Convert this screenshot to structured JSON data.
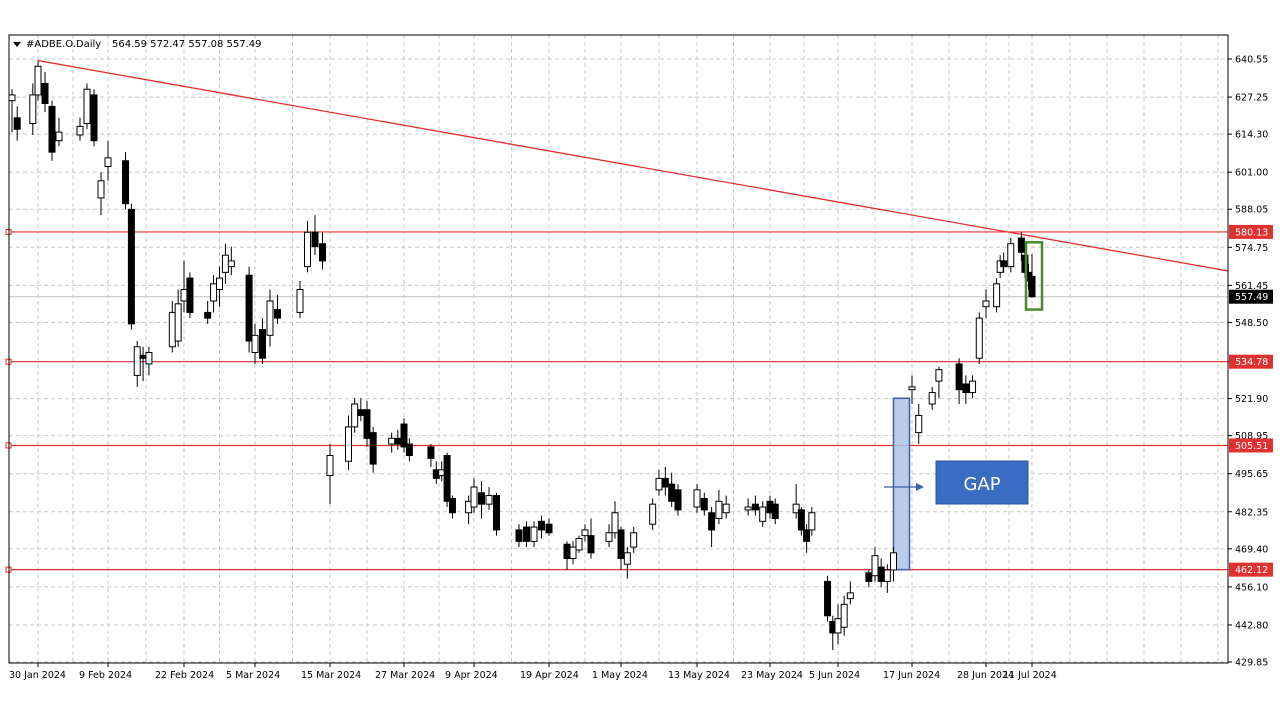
{
  "header": {
    "symbol": "#ADBE.O.Daily",
    "ohlc": "564.59 572.47 557.08 557.49"
  },
  "callout": {
    "label": "GAP"
  },
  "colors": {
    "line_red": "#e03030",
    "grid": "#c8c8c8",
    "gap_fill": "#aec3e8",
    "gap_stroke": "#3d5fa8",
    "callout_fill": "#3b6cc4",
    "highlight_green": "#4a8a2a",
    "candle": "#000000"
  },
  "chart_data": {
    "type": "candlestick",
    "title": "#ADBE.O.Daily",
    "ylim": [
      429.85,
      645.0
    ],
    "y_ticks": [
      "640.55",
      "627.25",
      "614.30",
      "601.00",
      "588.05",
      "574.75",
      "561.45",
      "548.50",
      "534.78",
      "521.90",
      "508.95",
      "495.65",
      "482.35",
      "469.40",
      "456.10",
      "442.80",
      "429.85"
    ],
    "x_tick_labels": [
      "30 Jan 2024",
      "9 Feb 2024",
      "22 Feb 2024",
      "5 Mar 2024",
      "15 Mar 2024",
      "27 Mar 2024",
      "9 Apr 2024",
      "19 Apr 2024",
      "1 May 2024",
      "13 May 2024",
      "23 May 2024",
      "5 Jun 2024",
      "17 Jun 2024",
      "28 Jun 2024",
      "11 Jul 2024"
    ],
    "horizontal_levels": [
      {
        "value": 580.13,
        "label": "580.13"
      },
      {
        "value": 534.78,
        "label": "534.78"
      },
      {
        "value": 505.51,
        "label": "505.51"
      },
      {
        "value": 462.12,
        "label": "462.12"
      }
    ],
    "current_price": {
      "value": 557.49,
      "label": "557.49"
    },
    "trendline": {
      "from": {
        "date": "30 Jan 2024",
        "value": 640.0
      },
      "to": {
        "date": "22 Jul 2024",
        "value": 566.5
      }
    },
    "gap_zone": {
      "low": 462.12,
      "high": 522.0,
      "date": "14 Jun 2024"
    },
    "highlight": {
      "low": 553.0,
      "high": 576.5,
      "date": "11 Jul 2024"
    },
    "candles": [
      {
        "date": "25 Jan 2024",
        "o": 626,
        "h": 630,
        "l": 615,
        "c": 628
      },
      {
        "date": "26 Jan 2024",
        "o": 620,
        "h": 624,
        "l": 612,
        "c": 616
      },
      {
        "date": "29 Jan 2024",
        "o": 618,
        "h": 632,
        "l": 614,
        "c": 628
      },
      {
        "date": "30 Jan 2024",
        "o": 628,
        "h": 640,
        "l": 626,
        "c": 638
      },
      {
        "date": "31 Jan 2024",
        "o": 632,
        "h": 636,
        "l": 622,
        "c": 625
      },
      {
        "date": "1 Feb 2024",
        "o": 624,
        "h": 626,
        "l": 605,
        "c": 608
      },
      {
        "date": "2 Feb 2024",
        "o": 612,
        "h": 620,
        "l": 610,
        "c": 615
      },
      {
        "date": "5 Feb 2024",
        "o": 614,
        "h": 620,
        "l": 612,
        "c": 617
      },
      {
        "date": "6 Feb 2024",
        "o": 618,
        "h": 632,
        "l": 616,
        "c": 630
      },
      {
        "date": "7 Feb 2024",
        "o": 628,
        "h": 630,
        "l": 610,
        "c": 612
      },
      {
        "date": "8 Feb 2024",
        "o": 592,
        "h": 601,
        "l": 586,
        "c": 598
      },
      {
        "date": "9 Feb 2024",
        "o": 603,
        "h": 612,
        "l": 598,
        "c": 606
      },
      {
        "date": "12 Feb 2024",
        "o": 605,
        "h": 608,
        "l": 588,
        "c": 590
      },
      {
        "date": "13 Feb 2024",
        "o": 588,
        "h": 590,
        "l": 546,
        "c": 548
      },
      {
        "date": "14 Feb 2024",
        "o": 530,
        "h": 542,
        "l": 526,
        "c": 540
      },
      {
        "date": "15 Feb 2024",
        "o": 537,
        "h": 540,
        "l": 528,
        "c": 536
      },
      {
        "date": "16 Feb 2024",
        "o": 534,
        "h": 540,
        "l": 530,
        "c": 538
      },
      {
        "date": "20 Feb 2024",
        "o": 540,
        "h": 556,
        "l": 538,
        "c": 552
      },
      {
        "date": "21 Feb 2024",
        "o": 542,
        "h": 560,
        "l": 540,
        "c": 555
      },
      {
        "date": "22 Feb 2024",
        "o": 556,
        "h": 570,
        "l": 552,
        "c": 560
      },
      {
        "date": "23 Feb 2024",
        "o": 564,
        "h": 566,
        "l": 550,
        "c": 552
      },
      {
        "date": "26 Feb 2024",
        "o": 552,
        "h": 556,
        "l": 548,
        "c": 550
      },
      {
        "date": "27 Feb 2024",
        "o": 556,
        "h": 565,
        "l": 552,
        "c": 562
      },
      {
        "date": "28 Feb 2024",
        "o": 560,
        "h": 568,
        "l": 554,
        "c": 564
      },
      {
        "date": "29 Feb 2024",
        "o": 566,
        "h": 576,
        "l": 562,
        "c": 572
      },
      {
        "date": "1 Mar 2024",
        "o": 568,
        "h": 575,
        "l": 565,
        "c": 570
      },
      {
        "date": "4 Mar 2024",
        "o": 565,
        "h": 568,
        "l": 538,
        "c": 542
      },
      {
        "date": "5 Mar 2024",
        "o": 538,
        "h": 548,
        "l": 534,
        "c": 544
      },
      {
        "date": "6 Mar 2024",
        "o": 546,
        "h": 550,
        "l": 534,
        "c": 536
      },
      {
        "date": "7 Mar 2024",
        "o": 544,
        "h": 560,
        "l": 540,
        "c": 556
      },
      {
        "date": "8 Mar 2024",
        "o": 553,
        "h": 558,
        "l": 548,
        "c": 550
      },
      {
        "date": "11 Mar 2024",
        "o": 552,
        "h": 563,
        "l": 550,
        "c": 560
      },
      {
        "date": "12 Mar 2024",
        "o": 568,
        "h": 584,
        "l": 566,
        "c": 580
      },
      {
        "date": "13 Mar 2024",
        "o": 580,
        "h": 586,
        "l": 572,
        "c": 575
      },
      {
        "date": "14 Mar 2024",
        "o": 576,
        "h": 580,
        "l": 567,
        "c": 570
      },
      {
        "date": "15 Mar 2024",
        "o": 495,
        "h": 506,
        "l": 485,
        "c": 502
      },
      {
        "date": "18 Mar 2024",
        "o": 500,
        "h": 516,
        "l": 497,
        "c": 512
      },
      {
        "date": "19 Mar 2024",
        "o": 512,
        "h": 522,
        "l": 510,
        "c": 520
      },
      {
        "date": "20 Mar 2024",
        "o": 518,
        "h": 522,
        "l": 514,
        "c": 516
      },
      {
        "date": "21 Mar 2024",
        "o": 518,
        "h": 521,
        "l": 505,
        "c": 508
      },
      {
        "date": "22 Mar 2024",
        "o": 510,
        "h": 512,
        "l": 496,
        "c": 499
      },
      {
        "date": "25 Mar 2024",
        "o": 506,
        "h": 510,
        "l": 503,
        "c": 508
      },
      {
        "date": "26 Mar 2024",
        "o": 508,
        "h": 511,
        "l": 504,
        "c": 506
      },
      {
        "date": "27 Mar 2024",
        "o": 513,
        "h": 515,
        "l": 503,
        "c": 505
      },
      {
        "date": "28 Mar 2024",
        "o": 506,
        "h": 508,
        "l": 500,
        "c": 502
      },
      {
        "date": "1 Apr 2024",
        "o": 505,
        "h": 506,
        "l": 498,
        "c": 501
      },
      {
        "date": "2 Apr 2024",
        "o": 497,
        "h": 500,
        "l": 492,
        "c": 494
      },
      {
        "date": "3 Apr 2024",
        "o": 495,
        "h": 500,
        "l": 493,
        "c": 497
      },
      {
        "date": "4 Apr 2024",
        "o": 502,
        "h": 503,
        "l": 484,
        "c": 486
      },
      {
        "date": "5 Apr 2024",
        "o": 487,
        "h": 488,
        "l": 480,
        "c": 482
      },
      {
        "date": "8 Apr 2024",
        "o": 482,
        "h": 488,
        "l": 478,
        "c": 486
      },
      {
        "date": "9 Apr 2024",
        "o": 484,
        "h": 494,
        "l": 482,
        "c": 491
      },
      {
        "date": "10 Apr 2024",
        "o": 489,
        "h": 493,
        "l": 480,
        "c": 485
      },
      {
        "date": "11 Apr 2024",
        "o": 485,
        "h": 491,
        "l": 483,
        "c": 488
      },
      {
        "date": "12 Apr 2024",
        "o": 488,
        "h": 489,
        "l": 474,
        "c": 476
      },
      {
        "date": "15 Apr 2024",
        "o": 476,
        "h": 478,
        "l": 470,
        "c": 472
      },
      {
        "date": "16 Apr 2024",
        "o": 477,
        "h": 479,
        "l": 470,
        "c": 472
      },
      {
        "date": "17 Apr 2024",
        "o": 472,
        "h": 479,
        "l": 470,
        "c": 477
      },
      {
        "date": "18 Apr 2024",
        "o": 479,
        "h": 481,
        "l": 473,
        "c": 476
      },
      {
        "date": "19 Apr 2024",
        "o": 478,
        "h": 480,
        "l": 474,
        "c": 475
      },
      {
        "date": "22 Apr 2024",
        "o": 471,
        "h": 472,
        "l": 462,
        "c": 466
      },
      {
        "date": "23 Apr 2024",
        "o": 466,
        "h": 472,
        "l": 464,
        "c": 470
      },
      {
        "date": "24 Apr 2024",
        "o": 469,
        "h": 474,
        "l": 468,
        "c": 473
      },
      {
        "date": "25 Apr 2024",
        "o": 474,
        "h": 478,
        "l": 472,
        "c": 476
      },
      {
        "date": "26 Apr 2024",
        "o": 474,
        "h": 480,
        "l": 466,
        "c": 468
      },
      {
        "date": "29 Apr 2024",
        "o": 472,
        "h": 478,
        "l": 470,
        "c": 475
      },
      {
        "date": "30 Apr 2024",
        "o": 475,
        "h": 486,
        "l": 473,
        "c": 482
      },
      {
        "date": "1 May 2024",
        "o": 476,
        "h": 477,
        "l": 462,
        "c": 466
      },
      {
        "date": "2 May 2024",
        "o": 464,
        "h": 470,
        "l": 459,
        "c": 468
      },
      {
        "date": "3 May 2024",
        "o": 470,
        "h": 477,
        "l": 468,
        "c": 475
      },
      {
        "date": "6 May 2024",
        "o": 478,
        "h": 487,
        "l": 476,
        "c": 485
      },
      {
        "date": "7 May 2024",
        "o": 490,
        "h": 497,
        "l": 488,
        "c": 494
      },
      {
        "date": "8 May 2024",
        "o": 494,
        "h": 498,
        "l": 488,
        "c": 491
      },
      {
        "date": "9 May 2024",
        "o": 492,
        "h": 496,
        "l": 484,
        "c": 486
      },
      {
        "date": "10 May 2024",
        "o": 490,
        "h": 492,
        "l": 481,
        "c": 483
      },
      {
        "date": "13 May 2024",
        "o": 484,
        "h": 492,
        "l": 482,
        "c": 490
      },
      {
        "date": "14 May 2024",
        "o": 487,
        "h": 489,
        "l": 481,
        "c": 483
      },
      {
        "date": "15 May 2024",
        "o": 482,
        "h": 484,
        "l": 470,
        "c": 476
      },
      {
        "date": "16 May 2024",
        "o": 480,
        "h": 490,
        "l": 478,
        "c": 486
      },
      {
        "date": "17 May 2024",
        "o": 482,
        "h": 488,
        "l": 480,
        "c": 485
      },
      {
        "date": "20 May 2024",
        "o": 483,
        "h": 487,
        "l": 481,
        "c": 484
      },
      {
        "date": "21 May 2024",
        "o": 485,
        "h": 488,
        "l": 481,
        "c": 483
      },
      {
        "date": "22 May 2024",
        "o": 479,
        "h": 486,
        "l": 477,
        "c": 484
      },
      {
        "date": "23 May 2024",
        "o": 486,
        "h": 488,
        "l": 480,
        "c": 482
      },
      {
        "date": "24 May 2024",
        "o": 485,
        "h": 487,
        "l": 478,
        "c": 480
      },
      {
        "date": "28 May 2024",
        "o": 482,
        "h": 492,
        "l": 480,
        "c": 485
      },
      {
        "date": "29 May 2024",
        "o": 483,
        "h": 484,
        "l": 474,
        "c": 476
      },
      {
        "date": "30 May 2024",
        "o": 476,
        "h": 478,
        "l": 468,
        "c": 472
      },
      {
        "date": "31 May 2024",
        "o": 476,
        "h": 484,
        "l": 474,
        "c": 482
      },
      {
        "date": "3 Jun 2024",
        "o": 458,
        "h": 460,
        "l": 444,
        "c": 446
      },
      {
        "date": "4 Jun 2024",
        "o": 444,
        "h": 446,
        "l": 434,
        "c": 440
      },
      {
        "date": "5 Jun 2024",
        "o": 440,
        "h": 450,
        "l": 436,
        "c": 445
      },
      {
        "date": "6 Jun 2024",
        "o": 442,
        "h": 453,
        "l": 439,
        "c": 450
      },
      {
        "date": "7 Jun 2024",
        "o": 452,
        "h": 458,
        "l": 450,
        "c": 454
      },
      {
        "date": "10 Jun 2024",
        "o": 461,
        "h": 462,
        "l": 456,
        "c": 458
      },
      {
        "date": "11 Jun 2024",
        "o": 460,
        "h": 470,
        "l": 458,
        "c": 467
      },
      {
        "date": "12 Jun 2024",
        "o": 463,
        "h": 466,
        "l": 456,
        "c": 458
      },
      {
        "date": "13 Jun 2024",
        "o": 458,
        "h": 464,
        "l": 454,
        "c": 462
      },
      {
        "date": "14 Jun 2024",
        "o": 462,
        "h": 470,
        "l": 458,
        "c": 468
      },
      {
        "date": "17 Jun 2024",
        "o": 525,
        "h": 530,
        "l": 520,
        "c": 526
      },
      {
        "date": "18 Jun 2024",
        "o": 510,
        "h": 520,
        "l": 506,
        "c": 516
      },
      {
        "date": "20 Jun 2024",
        "o": 520,
        "h": 526,
        "l": 518,
        "c": 524
      },
      {
        "date": "21 Jun 2024",
        "o": 528,
        "h": 533,
        "l": 522,
        "c": 532
      },
      {
        "date": "24 Jun 2024",
        "o": 534,
        "h": 536,
        "l": 520,
        "c": 525
      },
      {
        "date": "25 Jun 2024",
        "o": 527,
        "h": 530,
        "l": 520,
        "c": 524
      },
      {
        "date": "26 Jun 2024",
        "o": 524,
        "h": 530,
        "l": 522,
        "c": 528
      },
      {
        "date": "27 Jun 2024",
        "o": 536,
        "h": 552,
        "l": 534,
        "c": 550
      },
      {
        "date": "28 Jun 2024",
        "o": 554,
        "h": 560,
        "l": 550,
        "c": 556
      },
      {
        "date": "1 Jul 2024",
        "o": 554,
        "h": 564,
        "l": 552,
        "c": 562
      },
      {
        "date": "2 Jul 2024",
        "o": 566,
        "h": 572,
        "l": 564,
        "c": 570
      },
      {
        "date": "3 Jul 2024",
        "o": 570,
        "h": 573,
        "l": 566,
        "c": 568
      },
      {
        "date": "5 Jul 2024",
        "o": 568,
        "h": 578,
        "l": 566,
        "c": 576
      },
      {
        "date": "8 Jul 2024",
        "o": 578,
        "h": 580,
        "l": 570,
        "c": 573
      },
      {
        "date": "9 Jul 2024",
        "o": 572,
        "h": 575,
        "l": 564,
        "c": 566
      },
      {
        "date": "10 Jul 2024",
        "o": 566,
        "h": 569,
        "l": 560,
        "c": 563
      },
      {
        "date": "11 Jul 2024",
        "o": 564.59,
        "h": 572.47,
        "l": 557.08,
        "c": 557.49
      }
    ]
  }
}
